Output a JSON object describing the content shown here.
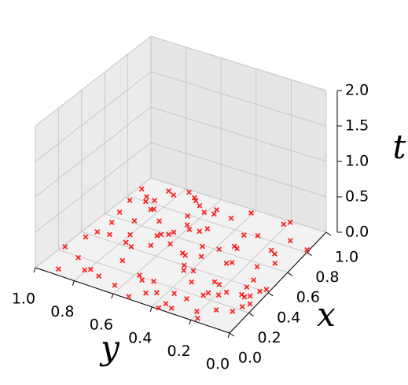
{
  "chart_data": {
    "type": "scatter3d",
    "xlabel": "x",
    "ylabel": "y",
    "zlabel": "t",
    "xlim": [
      0,
      1
    ],
    "ylim": [
      0,
      1
    ],
    "zlim": [
      0,
      2
    ],
    "xticks": [
      {
        "value": 0,
        "label": "0.0"
      },
      {
        "value": 0.2,
        "label": "0.2"
      },
      {
        "value": 0.4,
        "label": "0.4"
      },
      {
        "value": 0.6,
        "label": "0.6"
      },
      {
        "value": 0.8,
        "label": "0.8"
      },
      {
        "value": 1,
        "label": "1.0"
      }
    ],
    "yticks": [
      {
        "value": 0,
        "label": "0.0"
      },
      {
        "value": 0.2,
        "label": "0.2"
      },
      {
        "value": 0.4,
        "label": "0.4"
      },
      {
        "value": 0.6,
        "label": "0.6"
      },
      {
        "value": 0.8,
        "label": "0.8"
      },
      {
        "value": 1,
        "label": "1.0"
      }
    ],
    "zticks": [
      {
        "value": 0,
        "label": "0.0"
      },
      {
        "value": 0.5,
        "label": "0.5"
      },
      {
        "value": 1,
        "label": "1.0"
      },
      {
        "value": 1.5,
        "label": "1.5"
      },
      {
        "value": 2,
        "label": "2.0"
      }
    ],
    "series": [
      {
        "color": "#ff0000",
        "x": [
          0.12,
          0.85,
          0.43,
          0.67,
          0.05,
          0.91,
          0.33,
          0.58,
          0.22,
          0.76,
          0.48,
          0.14,
          0.95,
          0.61,
          0.37,
          0.08,
          0.72,
          0.27,
          0.83,
          0.52,
          0.18,
          0.64,
          0.41,
          0.97,
          0.03,
          0.55,
          0.29,
          0.79,
          0.46,
          0.11,
          0.88,
          0.35,
          0.69,
          0.24,
          0.57,
          0.93,
          0.16,
          0.74,
          0.39,
          0.62,
          0.07,
          0.81,
          0.44,
          0.26,
          0.98,
          0.51,
          0.31,
          0.86,
          0.19,
          0.66,
          0.02,
          0.73,
          0.47,
          0.89,
          0.34,
          0.59,
          0.13,
          0.78,
          0.42,
          0.21,
          0.94,
          0.54,
          0.28,
          0.71,
          0.09,
          0.84,
          0.38,
          0.63,
          0.17,
          0.92,
          0.49,
          0.25,
          0.77,
          0.06,
          0.56,
          0.32,
          0.87,
          0.45,
          0.15,
          0.68,
          0.99,
          0.36,
          0.6,
          0.23,
          0.8,
          0.04,
          0.53,
          0.3,
          0.75,
          0.4,
          0.1,
          0.96,
          0.65,
          0.2,
          0.82,
          0.5,
          0.01,
          0.7,
          0.39,
          0.9
        ],
        "y": [
          0.44,
          0.12,
          0.78,
          0.33,
          0.91,
          0.57,
          0.06,
          0.68,
          0.25,
          0.83,
          0.49,
          0.14,
          0.72,
          0.38,
          0.96,
          0.21,
          0.62,
          0.03,
          0.87,
          0.29,
          0.55,
          0.09,
          0.74,
          0.41,
          0.18,
          0.93,
          0.35,
          0.66,
          0.11,
          0.81,
          0.47,
          0.26,
          0.59,
          0.99,
          0.15,
          0.7,
          0.37,
          0.52,
          0.04,
          0.85,
          0.63,
          0.28,
          0.94,
          0.19,
          0.77,
          0.42,
          0.08,
          0.61,
          0.89,
          0.31,
          0.53,
          0.16,
          0.67,
          0.98,
          0.23,
          0.46,
          0.79,
          0.34,
          0.02,
          0.58,
          0.86,
          0.27,
          0.71,
          0.13,
          0.48,
          0.92,
          0.39,
          0.64,
          0.07,
          0.82,
          0.51,
          0.24,
          0.97,
          0.36,
          0.69,
          0.1,
          0.56,
          0.88,
          0.3,
          0.75,
          0.2,
          0.43,
          0.65,
          0.05,
          0.9,
          0.32,
          0.6,
          0.17,
          0.84,
          0.45,
          0.73,
          0.22,
          0.95,
          0.5,
          0.01,
          0.8,
          0.37,
          0.54,
          0.11,
          0.66
        ],
        "z": [
          0,
          0,
          0,
          0,
          0,
          0,
          0,
          0,
          0,
          0,
          0,
          0,
          0,
          0,
          0,
          0,
          0,
          0,
          0,
          0,
          0,
          0,
          0,
          0,
          0,
          0,
          0,
          0,
          0,
          0,
          0,
          0,
          0,
          0,
          0,
          0,
          0,
          0,
          0,
          0,
          0,
          0,
          0,
          0,
          0,
          0,
          0,
          0,
          0,
          0,
          0,
          0,
          0,
          0,
          0,
          0,
          0,
          0,
          0,
          0,
          0,
          0,
          0,
          0,
          0,
          0,
          0,
          0,
          0,
          0,
          0,
          0,
          0,
          0,
          0,
          0,
          0,
          0,
          0,
          0,
          0,
          0,
          0,
          0,
          0,
          0,
          0,
          0,
          0,
          0,
          0,
          0,
          0,
          0,
          0,
          0,
          0,
          0,
          0,
          0
        ]
      }
    ]
  }
}
